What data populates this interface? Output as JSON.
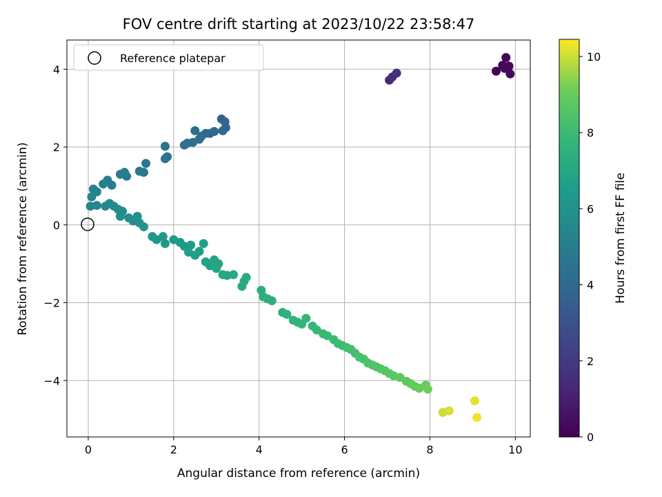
{
  "chart_data": {
    "type": "scatter",
    "title": "FOV centre drift starting at 2023/10/22 23:58:47",
    "xlabel": "Angular distance from reference (arcmin)",
    "ylabel": "Rotation from reference (arcmin)",
    "xlim": [
      -0.5,
      10.35
    ],
    "ylim": [
      -5.45,
      4.75
    ],
    "xticks": [
      0,
      2,
      4,
      6,
      8,
      10
    ],
    "yticks": [
      -4,
      -2,
      0,
      2,
      4
    ],
    "grid": true,
    "legend": {
      "placement": "top-left",
      "entries": [
        "Reference platepar"
      ]
    },
    "reference_point": {
      "name": "Reference platepar",
      "x": 0,
      "y": 0
    },
    "colorbar": {
      "label": "Hours from first FF file",
      "colormap": "viridis",
      "range": [
        0,
        10.45
      ],
      "ticks": [
        0,
        2,
        4,
        6,
        8,
        10
      ]
    },
    "points": [
      [
        9.55,
        3.95,
        0.05
      ],
      [
        9.7,
        4.1,
        0.1
      ],
      [
        9.78,
        4.3,
        0.15
      ],
      [
        9.85,
        4.08,
        0.2
      ],
      [
        9.88,
        3.88,
        0.25
      ],
      [
        9.75,
        4.02,
        0.3
      ],
      [
        7.05,
        3.72,
        1.4
      ],
      [
        7.12,
        3.8,
        1.5
      ],
      [
        7.22,
        3.9,
        1.6
      ],
      [
        3.12,
        2.72,
        3.7
      ],
      [
        3.2,
        2.65,
        3.75
      ],
      [
        3.22,
        2.5,
        3.8
      ],
      [
        3.15,
        2.42,
        3.85
      ],
      [
        2.95,
        2.4,
        3.9
      ],
      [
        2.85,
        2.35,
        3.95
      ],
      [
        2.75,
        2.35,
        4.0
      ],
      [
        2.6,
        2.2,
        4.05
      ],
      [
        2.65,
        2.28,
        4.1
      ],
      [
        2.5,
        2.42,
        4.15
      ],
      [
        2.45,
        2.12,
        4.2
      ],
      [
        2.32,
        2.1,
        4.25
      ],
      [
        2.25,
        2.05,
        4.3
      ],
      [
        1.85,
        1.75,
        4.4
      ],
      [
        1.8,
        1.7,
        4.45
      ],
      [
        1.8,
        2.02,
        4.5
      ],
      [
        1.35,
        1.58,
        4.6
      ],
      [
        1.3,
        1.35,
        4.65
      ],
      [
        1.2,
        1.38,
        4.7
      ],
      [
        0.9,
        1.25,
        4.8
      ],
      [
        0.85,
        1.35,
        4.85
      ],
      [
        0.75,
        1.3,
        4.9
      ],
      [
        0.55,
        1.02,
        5.0
      ],
      [
        0.45,
        1.15,
        5.05
      ],
      [
        0.35,
        1.05,
        5.1
      ],
      [
        0.2,
        0.85,
        5.2
      ],
      [
        0.12,
        0.92,
        5.25
      ],
      [
        0.08,
        0.72,
        5.3
      ],
      [
        0.05,
        0.48,
        5.35
      ],
      [
        0.2,
        0.5,
        5.4
      ],
      [
        0.4,
        0.48,
        5.5
      ],
      [
        0.5,
        0.55,
        5.55
      ],
      [
        0.6,
        0.48,
        5.6
      ],
      [
        0.7,
        0.4,
        5.65
      ],
      [
        0.8,
        0.35,
        5.7
      ],
      [
        0.75,
        0.22,
        5.75
      ],
      [
        0.95,
        0.18,
        5.8
      ],
      [
        1.05,
        0.1,
        5.85
      ],
      [
        1.15,
        0.22,
        5.9
      ],
      [
        1.2,
        0.05,
        5.95
      ],
      [
        1.3,
        -0.05,
        6.0
      ],
      [
        1.5,
        -0.3,
        6.1
      ],
      [
        1.6,
        -0.38,
        6.15
      ],
      [
        1.75,
        -0.3,
        6.2
      ],
      [
        1.8,
        -0.48,
        6.25
      ],
      [
        2.0,
        -0.38,
        6.3
      ],
      [
        2.15,
        -0.45,
        6.35
      ],
      [
        2.25,
        -0.55,
        6.4
      ],
      [
        2.4,
        -0.52,
        6.45
      ],
      [
        2.35,
        -0.7,
        6.5
      ],
      [
        2.5,
        -0.78,
        6.55
      ],
      [
        2.6,
        -0.68,
        6.6
      ],
      [
        2.7,
        -0.48,
        6.65
      ],
      [
        2.75,
        -0.95,
        6.7
      ],
      [
        2.85,
        -1.05,
        6.75
      ],
      [
        2.95,
        -0.9,
        6.8
      ],
      [
        3.05,
        -1.0,
        6.85
      ],
      [
        3.0,
        -1.12,
        6.9
      ],
      [
        3.15,
        -1.28,
        6.95
      ],
      [
        3.25,
        -1.3,
        7.0
      ],
      [
        3.4,
        -1.28,
        7.05
      ],
      [
        3.6,
        -1.58,
        7.1
      ],
      [
        3.65,
        -1.45,
        7.15
      ],
      [
        3.7,
        -1.35,
        7.2
      ],
      [
        4.05,
        -1.68,
        7.3
      ],
      [
        4.1,
        -1.85,
        7.35
      ],
      [
        4.2,
        -1.9,
        7.4
      ],
      [
        4.3,
        -1.95,
        7.45
      ],
      [
        4.55,
        -2.25,
        7.5
      ],
      [
        4.65,
        -2.3,
        7.55
      ],
      [
        4.8,
        -2.45,
        7.6
      ],
      [
        4.9,
        -2.5,
        7.65
      ],
      [
        5.0,
        -2.55,
        7.7
      ],
      [
        5.1,
        -2.4,
        7.75
      ],
      [
        5.25,
        -2.6,
        7.8
      ],
      [
        5.35,
        -2.7,
        7.85
      ],
      [
        5.5,
        -2.8,
        7.9
      ],
      [
        5.6,
        -2.85,
        7.95
      ],
      [
        5.75,
        -2.95,
        8.0
      ],
      [
        5.85,
        -3.05,
        8.05
      ],
      [
        5.95,
        -3.1,
        8.1
      ],
      [
        6.05,
        -3.15,
        8.15
      ],
      [
        6.15,
        -3.2,
        8.2
      ],
      [
        6.25,
        -3.3,
        8.25
      ],
      [
        6.35,
        -3.4,
        8.3
      ],
      [
        6.45,
        -3.45,
        8.35
      ],
      [
        6.55,
        -3.55,
        8.4
      ],
      [
        6.65,
        -3.6,
        8.45
      ],
      [
        6.75,
        -3.65,
        8.5
      ],
      [
        6.85,
        -3.7,
        8.55
      ],
      [
        6.95,
        -3.75,
        8.6
      ],
      [
        7.05,
        -3.82,
        8.65
      ],
      [
        7.15,
        -3.88,
        8.7
      ],
      [
        7.3,
        -3.92,
        8.75
      ],
      [
        7.45,
        -4.02,
        8.8
      ],
      [
        7.55,
        -4.08,
        8.85
      ],
      [
        7.65,
        -4.15,
        8.9
      ],
      [
        7.75,
        -4.2,
        8.95
      ],
      [
        7.9,
        -4.12,
        9.0
      ],
      [
        7.95,
        -4.22,
        9.05
      ],
      [
        8.3,
        -4.82,
        10.0
      ],
      [
        8.45,
        -4.78,
        10.1
      ],
      [
        9.05,
        -4.52,
        10.2
      ],
      [
        9.1,
        -4.95,
        10.3
      ]
    ]
  }
}
